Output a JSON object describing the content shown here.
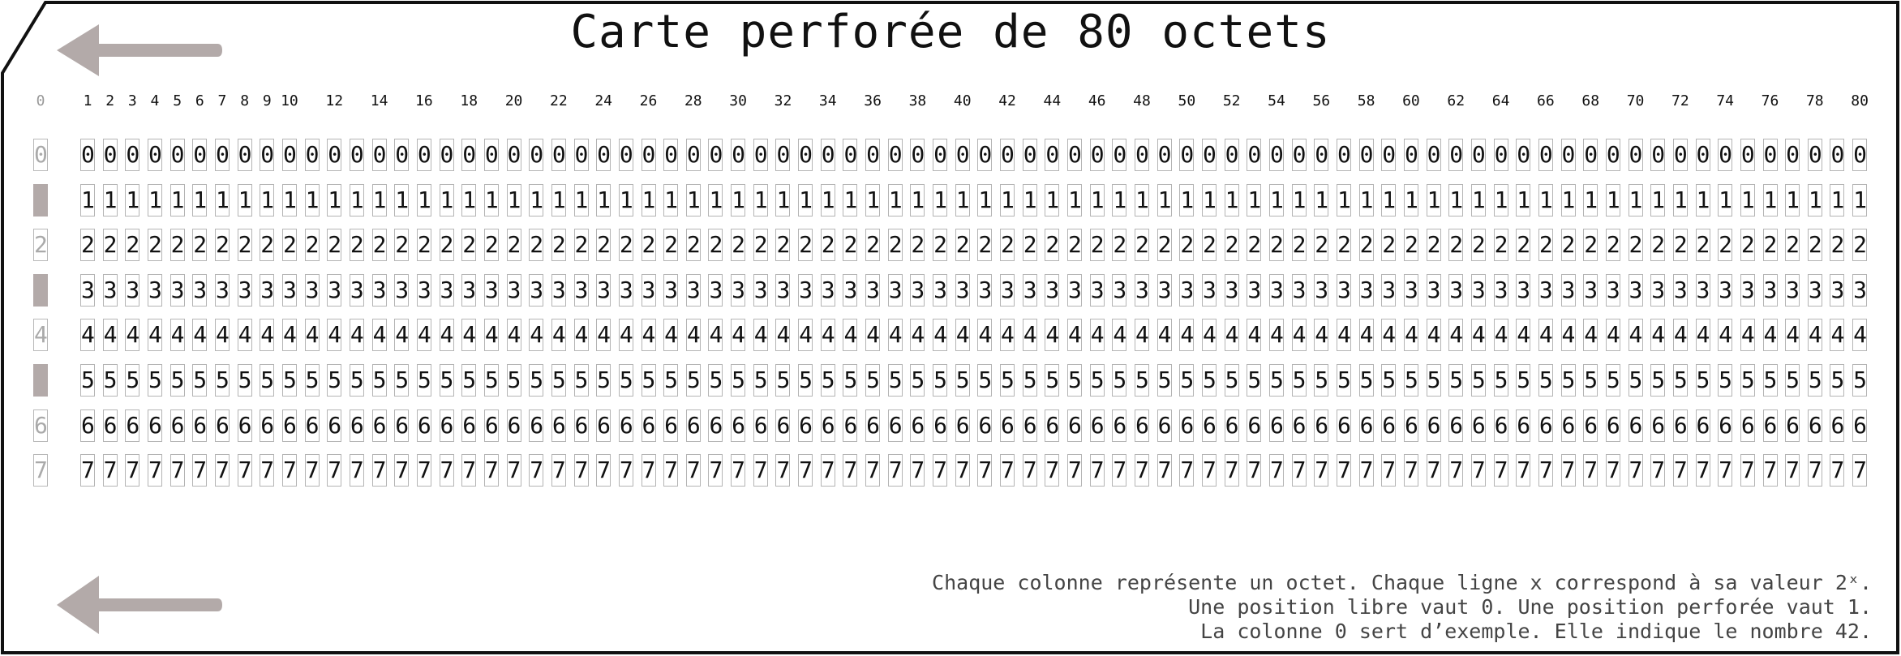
{
  "card": {
    "title": "Carte perforée de 80 octets",
    "border_color": "#111111",
    "hole_color": "#b3aaa9",
    "arrow_color": "#b3aaa9",
    "column_labels": [
      "0",
      "1",
      "2",
      "3",
      "4",
      "5",
      "6",
      "7",
      "8",
      "9",
      "10",
      "12",
      "14",
      "16",
      "18",
      "20",
      "22",
      "24",
      "26",
      "28",
      "30",
      "32",
      "34",
      "36",
      "38",
      "40",
      "42",
      "44",
      "46",
      "48",
      "50",
      "52",
      "54",
      "56",
      "58",
      "60",
      "62",
      "64",
      "66",
      "68",
      "70",
      "72",
      "74",
      "76",
      "78",
      "80"
    ],
    "row_digits": [
      "0",
      "1",
      "2",
      "3",
      "4",
      "5",
      "6",
      "7"
    ],
    "example_punched_rows": [
      1,
      3,
      5
    ],
    "legend": [
      "Chaque colonne représente un octet. Chaque ligne x correspond à sa valeur 2ˣ.",
      "Une position libre vaut 0. Une position perforée vaut 1.",
      "La colonne 0 sert d’exemple. Elle indique le nombre 42."
    ],
    "icons": {
      "top_arrow": "left-arrow-icon",
      "bottom_arrow": "left-arrow-icon"
    }
  }
}
